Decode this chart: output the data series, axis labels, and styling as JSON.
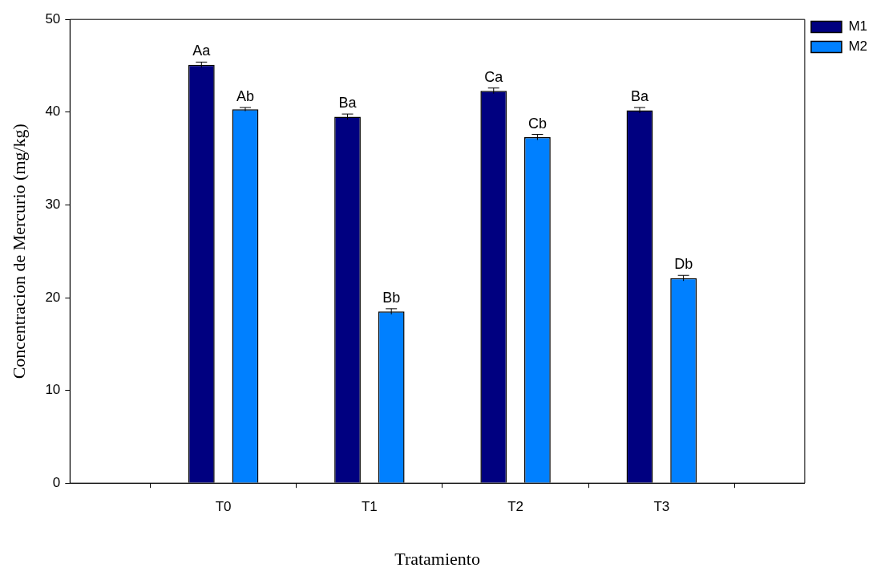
{
  "chart_data": {
    "type": "bar",
    "xlabel": "Tratamiento",
    "ylabel": "Concentracion de Mercurio (mg/kg)",
    "categories": [
      "T0",
      "T1",
      "T2",
      "T3"
    ],
    "series": [
      {
        "name": "M1",
        "color": "#000080",
        "values": [
          45.1,
          39.5,
          42.3,
          40.2
        ],
        "errors": [
          0.3,
          0.3,
          0.3,
          0.3
        ],
        "value_labels": [
          "Aa",
          "Ba",
          "Ca",
          "Ba"
        ]
      },
      {
        "name": "M2",
        "color": "#0080ff",
        "values": [
          40.3,
          18.5,
          37.3,
          22.1
        ],
        "errors": [
          0.2,
          0.3,
          0.3,
          0.3
        ],
        "value_labels": [
          "Ab",
          "Bb",
          "Cb",
          "Db"
        ]
      }
    ],
    "ylim": [
      0,
      50
    ],
    "yticks": [
      0,
      10,
      20,
      30,
      40,
      50
    ],
    "grid": false,
    "legend": "top right"
  }
}
